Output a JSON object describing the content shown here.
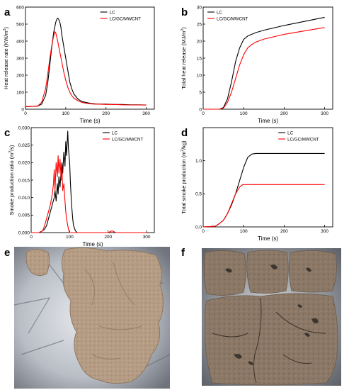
{
  "panel_labels": [
    "a",
    "b",
    "c",
    "d",
    "e",
    "f"
  ],
  "chart_data": [
    {
      "id": "a",
      "type": "line",
      "xlabel": "Time (s)",
      "ylabel": "Heat release rate (KW/m",
      "ylabel_sup": "2",
      "ylabel_end": ")",
      "xlim": [
        0,
        320
      ],
      "ylim": [
        0,
        600
      ],
      "xticks": [
        0,
        100,
        200,
        300
      ],
      "yticks": [
        0,
        100,
        200,
        300,
        400,
        500,
        600
      ],
      "legend": "top-right",
      "series": [
        {
          "name": "LC",
          "color": "#000000",
          "x": [
            0,
            30,
            40,
            50,
            55,
            60,
            65,
            70,
            75,
            78,
            80,
            82,
            85,
            88,
            90,
            95,
            100,
            105,
            110,
            115,
            120,
            130,
            140,
            150,
            160,
            170,
            180,
            200,
            220,
            240,
            260,
            280,
            300
          ],
          "y": [
            15,
            18,
            30,
            80,
            150,
            250,
            360,
            450,
            510,
            530,
            535,
            530,
            515,
            480,
            440,
            370,
            300,
            230,
            160,
            120,
            90,
            60,
            45,
            40,
            35,
            32,
            30,
            30,
            28,
            28,
            26,
            26,
            25
          ]
        },
        {
          "name": "LC/GC/MWCNT",
          "color": "#ff0000",
          "x": [
            0,
            30,
            40,
            50,
            55,
            60,
            65,
            70,
            73,
            75,
            78,
            80,
            85,
            90,
            95,
            100,
            105,
            110,
            115,
            120,
            130,
            140,
            150,
            160,
            170,
            180,
            200,
            220,
            240,
            260,
            280,
            300
          ],
          "y": [
            15,
            18,
            40,
            120,
            200,
            290,
            370,
            430,
            455,
            450,
            420,
            400,
            340,
            280,
            220,
            170,
            130,
            100,
            80,
            65,
            50,
            40,
            35,
            32,
            30,
            30,
            28,
            28,
            26,
            25,
            25,
            24
          ]
        }
      ]
    },
    {
      "id": "b",
      "type": "line",
      "xlabel": "Time (s)",
      "ylabel": "Total heat release (MJ/m",
      "ylabel_sup": "2",
      "ylabel_end": ")",
      "xlim": [
        0,
        320
      ],
      "ylim": [
        0,
        30
      ],
      "xticks": [
        0,
        100,
        200,
        300
      ],
      "yticks": [
        0,
        5,
        10,
        15,
        20,
        25,
        30
      ],
      "legend": "top-left",
      "series": [
        {
          "name": "LC",
          "color": "#000000",
          "x": [
            0,
            40,
            50,
            60,
            70,
            80,
            90,
            100,
            110,
            120,
            130,
            150,
            200,
            250,
            300
          ],
          "y": [
            0,
            0,
            0.5,
            3,
            8,
            14,
            18,
            20.5,
            21.5,
            22,
            22.5,
            23.2,
            24.6,
            25.8,
            27
          ]
        },
        {
          "name": "LC/GC/MWCNT",
          "color": "#ff0000",
          "x": [
            0,
            40,
            50,
            60,
            70,
            80,
            90,
            100,
            110,
            120,
            130,
            150,
            200,
            250,
            300
          ],
          "y": [
            0,
            0,
            0.3,
            2,
            5,
            9,
            13,
            16,
            18,
            19,
            19.7,
            20.6,
            22,
            23,
            24
          ]
        }
      ]
    },
    {
      "id": "c",
      "type": "line",
      "xlabel": "Time (s)",
      "ylabel": "Smoke production ratio (m",
      "ylabel_sup": "2",
      "ylabel_end": "/s)",
      "xlim": [
        0,
        320
      ],
      "ylim": [
        0,
        0.03
      ],
      "xticks": [
        0,
        100,
        200,
        300
      ],
      "yticks": [
        0,
        0.005,
        0.01,
        0.015,
        0.02,
        0.025,
        0.03
      ],
      "ytick_labels": [
        "0.000",
        "0.005",
        "0.010",
        "0.015",
        "0.020",
        "0.025",
        "0.030"
      ],
      "legend": "top-right",
      "series": [
        {
          "name": "LC",
          "color": "#000000",
          "x": [
            0,
            20,
            30,
            35,
            40,
            45,
            50,
            55,
            60,
            62,
            65,
            68,
            70,
            72,
            75,
            78,
            80,
            82,
            85,
            88,
            90,
            92,
            95,
            97,
            100,
            102,
            105,
            108,
            110,
            115,
            120,
            200,
            300
          ],
          "y": [
            0,
            0,
            0.0005,
            0.001,
            0.002,
            0.004,
            0.006,
            0.008,
            0.01,
            0.012,
            0.009,
            0.014,
            0.011,
            0.016,
            0.013,
            0.018,
            0.02,
            0.017,
            0.023,
            0.019,
            0.026,
            0.022,
            0.029,
            0.024,
            0.02,
            0.014,
            0.008,
            0.004,
            0.002,
            0.0005,
            0,
            0,
            0
          ]
        },
        {
          "name": "LC/GC/MWCNT",
          "color": "#ff0000",
          "x": [
            0,
            20,
            30,
            35,
            40,
            45,
            50,
            55,
            58,
            60,
            62,
            65,
            68,
            70,
            72,
            75,
            78,
            80,
            82,
            85,
            88,
            90,
            92,
            95,
            98,
            100,
            120,
            200,
            210,
            220,
            300
          ],
          "y": [
            0,
            0,
            0.0005,
            0.002,
            0.004,
            0.006,
            0.008,
            0.011,
            0.014,
            0.018,
            0.012,
            0.02,
            0.016,
            0.022,
            0.017,
            0.021,
            0.015,
            0.019,
            0.012,
            0.014,
            0.009,
            0.006,
            0.004,
            0.002,
            0.0005,
            0,
            0,
            0,
            0.0005,
            0,
            0
          ]
        }
      ]
    },
    {
      "id": "d",
      "type": "line",
      "xlabel": "Time (s)",
      "ylabel": "Total smoke production (m",
      "ylabel_sup": "2",
      "ylabel_end": "/kg)",
      "xlim": [
        0,
        320
      ],
      "ylim": [
        0,
        1.5
      ],
      "xticks": [
        0,
        100,
        200,
        300
      ],
      "yticks": [
        0,
        0.5,
        1.0
      ],
      "ytick_labels": [
        "0.0",
        "0.5",
        "1.0"
      ],
      "legend": "top-right",
      "series": [
        {
          "name": "LC",
          "color": "#000000",
          "x": [
            0,
            30,
            40,
            50,
            60,
            70,
            80,
            90,
            100,
            110,
            120,
            130,
            200,
            300
          ],
          "y": [
            0,
            0.01,
            0.05,
            0.1,
            0.2,
            0.33,
            0.5,
            0.7,
            0.9,
            1.05,
            1.1,
            1.11,
            1.11,
            1.11
          ]
        },
        {
          "name": "LC/GC/MWCNT",
          "color": "#ff0000",
          "x": [
            0,
            30,
            40,
            50,
            60,
            70,
            80,
            90,
            95,
            100,
            110,
            120,
            200,
            300
          ],
          "y": [
            0,
            0.01,
            0.05,
            0.1,
            0.2,
            0.35,
            0.5,
            0.6,
            0.63,
            0.64,
            0.64,
            0.64,
            0.64,
            0.64
          ]
        }
      ]
    }
  ]
}
